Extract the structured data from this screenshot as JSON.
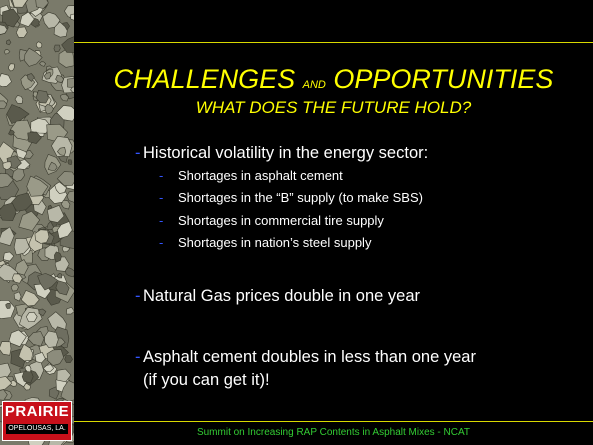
{
  "header": {
    "title": {
      "part1": "CHALLENGES",
      "part2": "AND",
      "part3": "OPPORTUNITIES"
    },
    "subtitle": "WHAT DOES THE FUTURE HOLD?"
  },
  "bullets": [
    {
      "text": "Historical volatility in the energy sector:",
      "items": [
        "Shortages in asphalt cement",
        "Shortages in the “B” supply (to make SBS)",
        "Shortages in commercial tire supply",
        "Shortages in nation’s steel supply"
      ]
    },
    {
      "text": "Natural Gas prices double in one year"
    },
    {
      "text": "Asphalt cement doubles in less than one year (if you can get it)!"
    }
  ],
  "logo": {
    "name": "PRAIRIE",
    "location": "OPELOUSAS, LA."
  },
  "footer": "Summit on Increasing RAP Contents in Asphalt Mixes - NCAT"
}
